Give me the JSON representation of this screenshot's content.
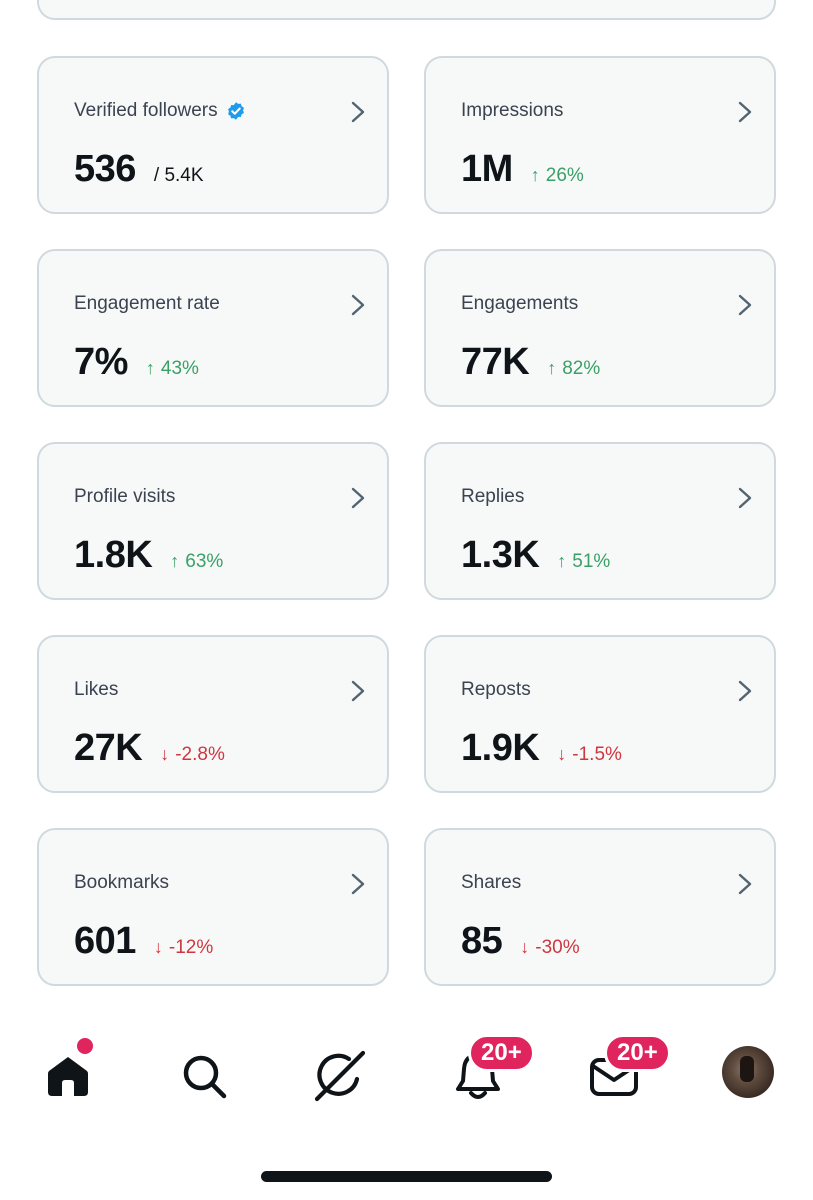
{
  "cards": [
    {
      "label": "Verified followers",
      "verified": true,
      "value": "536",
      "sub": "/ 5.4K"
    },
    {
      "label": "Impressions",
      "value": "1M",
      "change": "26%",
      "direction": "up"
    },
    {
      "label": "Engagement rate",
      "value": "7%",
      "change": "43%",
      "direction": "up"
    },
    {
      "label": "Engagements",
      "value": "77K",
      "change": "82%",
      "direction": "up"
    },
    {
      "label": "Profile visits",
      "value": "1.8K",
      "change": "63%",
      "direction": "up"
    },
    {
      "label": "Replies",
      "value": "1.3K",
      "change": "51%",
      "direction": "up"
    },
    {
      "label": "Likes",
      "value": "27K",
      "change": "-2.8%",
      "direction": "down"
    },
    {
      "label": "Reposts",
      "value": "1.9K",
      "change": "-1.5%",
      "direction": "down"
    },
    {
      "label": "Bookmarks",
      "value": "601",
      "change": "-12%",
      "direction": "down"
    },
    {
      "label": "Shares",
      "value": "85",
      "change": "-30%",
      "direction": "down"
    }
  ],
  "arrows": {
    "up": "↑",
    "down": "↓"
  },
  "nav": {
    "notifications_badge": "20+",
    "messages_badge": "20+"
  },
  "colors": {
    "up": "#3aa066",
    "down": "#d0363f",
    "badge": "#e0245e",
    "verified": "#1d9bf0"
  }
}
